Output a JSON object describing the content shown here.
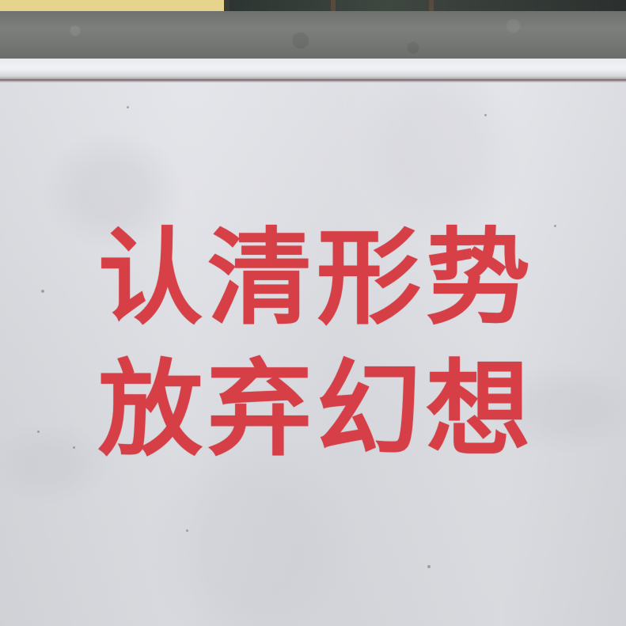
{
  "photo": {
    "slogan": {
      "line1": "认清形势",
      "line2": "放弃幻想"
    },
    "colors": {
      "paint": "#d7343c",
      "wall": "#dcdde2",
      "coping": "#737572"
    }
  }
}
